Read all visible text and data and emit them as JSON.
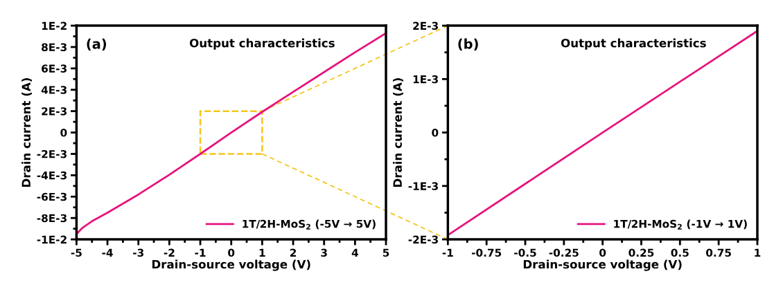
{
  "chart_data": [
    {
      "type": "line",
      "title": "Output characteristics",
      "annotations": [
        "(a)"
      ],
      "xlabel": "Drain-source voltage (V)",
      "ylabel": "Drain current (A)",
      "xlim": [
        -5,
        5
      ],
      "xticks": [
        -5,
        -4,
        -3,
        -2,
        -1,
        0,
        1,
        2,
        3,
        4,
        5
      ],
      "ylim": [
        -0.01,
        0.01
      ],
      "yticks": [
        {
          "value": -0.01,
          "label": "-1E-2"
        },
        {
          "value": -0.008,
          "label": "-8E-3"
        },
        {
          "value": -0.006,
          "label": "-6E-3"
        },
        {
          "value": -0.004,
          "label": "-4E-3"
        },
        {
          "value": -0.002,
          "label": "-2E-3"
        },
        0,
        {
          "value": 0.002,
          "label": "2E-3"
        },
        {
          "value": 0.004,
          "label": "4E-3"
        },
        {
          "value": 0.006,
          "label": "6E-3"
        },
        {
          "value": 0.008,
          "label": "8E-3"
        },
        {
          "value": 0.01,
          "label": "1E-2"
        }
      ],
      "legend": "bottom right",
      "series": [
        {
          "name": "1T/2H-MoS$_{2}$ (-5V → 5V)",
          "color": "#e6147d",
          "x": [
            -5,
            -4.8,
            -4.5,
            -4,
            -3,
            -2,
            -1,
            0,
            1,
            2,
            3,
            4,
            5
          ],
          "values": [
            -0.0095,
            -0.0089,
            -0.0083,
            -0.0075,
            -0.0058,
            -0.00395,
            -0.002,
            0,
            0.00193,
            0.0038,
            0.00565,
            0.0075,
            0.0093
          ]
        }
      ]
    },
    {
      "type": "line",
      "title": "Output characteristics",
      "annotations": [
        "(b)"
      ],
      "xlabel": "Drain-source voltage (V)",
      "ylabel": "Drain current (A)",
      "xlim": [
        -1,
        1
      ],
      "xticks": [
        -1,
        -0.75,
        -0.5,
        -0.25,
        0,
        0.25,
        0.5,
        0.75,
        1
      ],
      "ylim": [
        -0.002,
        0.002
      ],
      "yticks": [
        {
          "value": -0.002,
          "label": "-2E-3"
        },
        {
          "value": -0.001,
          "label": "-1E-3"
        },
        0,
        {
          "value": 0.001,
          "label": "1E-3"
        },
        {
          "value": 0.002,
          "label": "2E-3"
        }
      ],
      "legend": "bottom right",
      "series": [
        {
          "name": "1T/2H-MoS$_{2}$ (-1V → 1V)",
          "color": "#e6147d",
          "x": [
            -1,
            -0.5,
            0,
            0.5,
            1
          ],
          "values": [
            -0.00192,
            -0.00096,
            0,
            0.00095,
            0.0019
          ]
        }
      ]
    }
  ]
}
